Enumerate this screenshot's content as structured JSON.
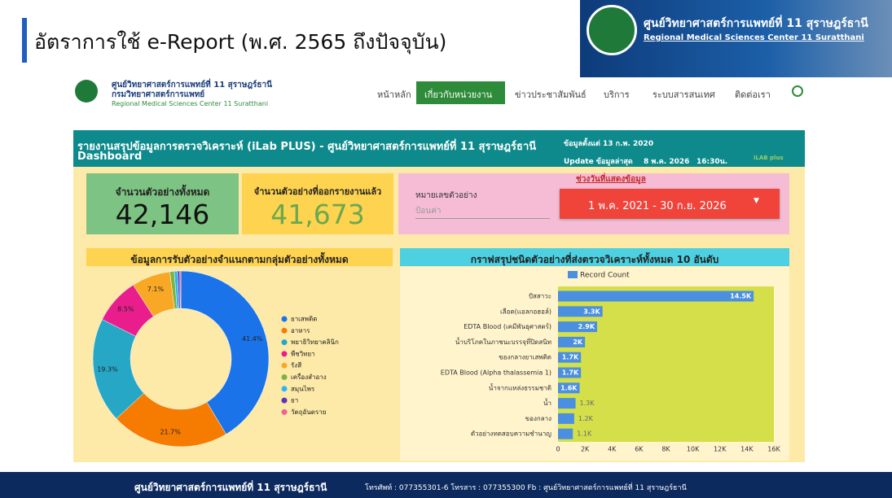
{
  "header": {
    "title": "อัตราการใช้ e-Report (พ.ศ. 2565 ถึงปัจจุบัน)",
    "org_th": "ศูนย์วิทยาศาสตร์การแพทย์ที่ 11 สุราษฎร์ธานี",
    "org_en": "Regional Medical Sciences Center 11 Suratthani"
  },
  "site": {
    "org_th": "ศูนย์วิทยาศาสตร์การแพทย์ที่ 11 สุราษฎร์ธานี",
    "dept_th": "กรมวิทยาศาสตร์การแพทย์",
    "org_en": "Regional Medical Sciences Center 11 Suratthani",
    "menu": [
      "หน้าหลัก",
      "เกี่ยวกับหน่วยงาน",
      "ข่าวประชาสัมพันธ์",
      "บริการ",
      "ระบบสารสนเทศ",
      "ติดต่อเรา"
    ]
  },
  "dashboard": {
    "title": "รายงานสรุปข้อมูลการตรวจวิเคราะห์ (iLab PLUS) - ศูนย์วิทยาศาสตร์การแพทย์ที่ 11 สุราษฎร์ธานี",
    "subtitle": "Dashboard",
    "data_since": "ข้อมูลตั้งแต่ 13 ก.พ. 2020",
    "update_label": "Update ข้อมูลล่าสุด",
    "update_date": "8 พ.ค. 2026",
    "update_time": "16:30น.",
    "logo_text": "iLAB plus",
    "kpis": [
      {
        "label": "จำนวนตัวอย่างทั้งหมด",
        "value": "42,146"
      },
      {
        "label": "จำนวนตัวอย่างที่ออกรายงานแล้ว",
        "value": "41,673"
      }
    ],
    "search": {
      "label": "หมายเลขตัวอย่าง",
      "placeholder": "ป้อนค่า"
    },
    "date_range": {
      "label": "ช่วงวันที่แสดงข้อมูล",
      "value": "1 พ.ค. 2021 - 30 ก.ย. 2026"
    }
  },
  "footer": {
    "org": "ศูนย์วิทยาศาสตร์การแพทย์ที่ 11 สุราษฎร์ธานี",
    "contact": "โทรศัพท์ : 077355301-6 โทรสาร : 077355300 Fb : ศูนย์วิทยาศาสตร์การแพทย์ที่ 11 สุราษฎร์ธานี"
  },
  "chart_data": [
    {
      "type": "pie",
      "donut": true,
      "legend": "right",
      "title": "ข้อมูลการรับตัวอย่างจำแนกตามกลุ่มตัวอย่างทั้งหมด",
      "categories": [
        "ยาเสพติด",
        "อาหาร",
        "พยาธิวิทยาคลินิก",
        "พืชวิทยา",
        "รังสี",
        "เครื่องสำอาง",
        "สมุนไพร",
        "ยา",
        "วัตถุอันตราย"
      ],
      "values": [
        41.4,
        21.7,
        19.3,
        8.5,
        7.1,
        0.8,
        0.6,
        0.4,
        0.2
      ],
      "value_labels": [
        "41.4%",
        "21.7%",
        "19.3%",
        "8.5%",
        "7.1%",
        null,
        null,
        null,
        null
      ],
      "colors": [
        "#1a73e8",
        "#f57c00",
        "#26a7c6",
        "#e91e8c",
        "#f9a825",
        "#7cb342",
        "#29b6f6",
        "#5e35b1",
        "#f06292"
      ]
    },
    {
      "type": "bar",
      "orientation": "horizontal",
      "legend": "top",
      "title": "กราฟสรุปชนิดตัวอย่างที่ส่งตรวจวิเคราะห์ทั้งหมด 10 อันดับ",
      "categories": [
        "ปัสสาวะ",
        "เลือด(แอลกอฮอล์)",
        "EDTA Blood (เคมีพันธุศาสตร์)",
        "น้ำบริโภคในภาชนะบรรจุที่ปิดสนิท",
        "ของกลางยาเสพติด",
        "EDTA Blood (Alpha thalassemia 1)",
        "น้ำจากแหล่งธรรมชาติ",
        "น้ำ",
        "ของกลาง",
        "ตัวอย่างทดสอบความชำนาญ"
      ],
      "series": [
        {
          "name": "Record Count",
          "color": "#4a8fe0",
          "values": [
            14500,
            3300,
            2900,
            2000,
            1700,
            1700,
            1600,
            1300,
            1200,
            1100
          ],
          "value_labels": [
            "14.5K",
            "3.3K",
            "2.9K",
            "2K",
            "1.7K",
            "1.7K",
            "1.6K",
            "1.3K",
            "1.2K",
            "1.1K"
          ]
        }
      ],
      "xlim": [
        0,
        16000
      ],
      "xticks": [
        0,
        {
          "value": 2000,
          "label": "2K"
        },
        {
          "value": 4000,
          "label": "4K"
        },
        {
          "value": 6000,
          "label": "6K"
        },
        {
          "value": 8000,
          "label": "8K"
        },
        {
          "value": 10000,
          "label": "10K"
        },
        {
          "value": 12000,
          "label": "12K"
        },
        {
          "value": 14000,
          "label": "14K"
        },
        {
          "value": 16000,
          "label": "16K"
        }
      ]
    }
  ]
}
